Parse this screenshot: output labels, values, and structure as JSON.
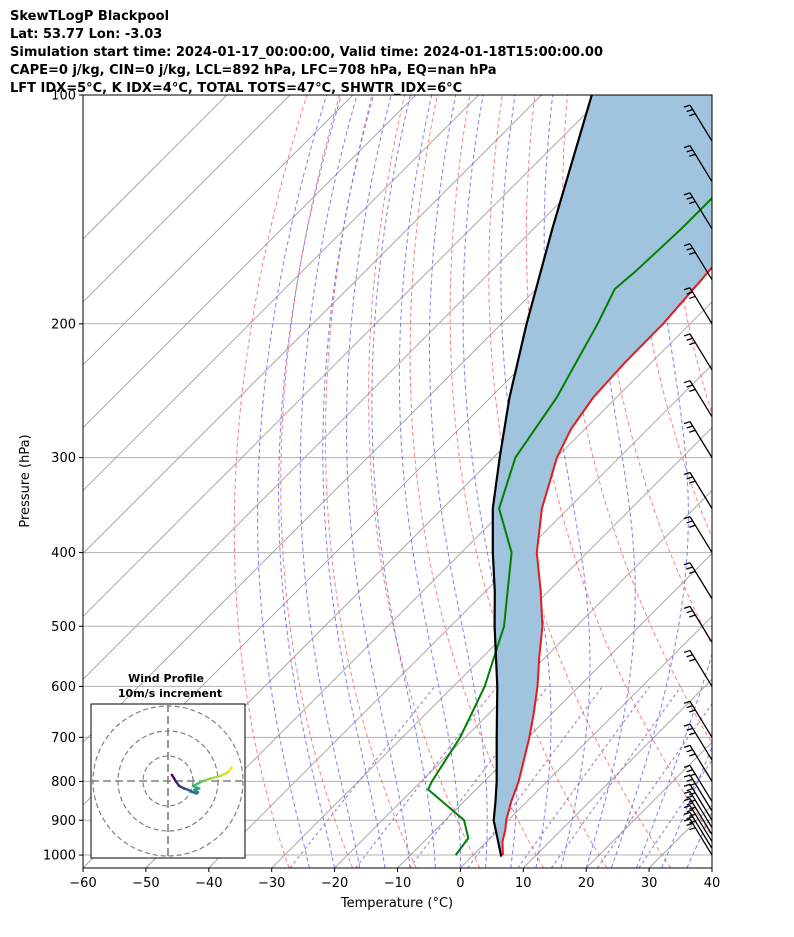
{
  "header": {
    "line1": "SkewTLogP Blackpool",
    "line2": "Lat: 53.77   Lon: -3.03",
    "line3": "Simulation start time: 2024-01-17_00:00:00, Valid time: 2024-01-18T15:00:00.00",
    "line4": "CAPE=0 j/kg, CIN=0 j/kg, LCL=892 hPa, LFC=708 hPa, EQ=nan hPa",
    "line5": "LFT IDX=5°C, K IDX=4°C, TOTAL TOTS=47°C, SHWTR_IDX=6°C"
  },
  "chart_data": {
    "type": "skew-t log-p",
    "xlabel": "Temperature (°C)",
    "ylabel": "Pressure (hPa)",
    "xlim": [
      -60,
      40
    ],
    "ylim": [
      1040,
      100
    ],
    "x_ticks": [
      "−60",
      "−50",
      "−40",
      "−30",
      "−20",
      "−10",
      "0",
      "10",
      "20",
      "30",
      "40"
    ],
    "x_tick_values": [
      -60,
      -50,
      -40,
      -30,
      -20,
      -10,
      0,
      10,
      20,
      30,
      40
    ],
    "y_ticks": [
      "100",
      "200",
      "300",
      "400",
      "500",
      "600",
      "700",
      "800",
      "900",
      "1000"
    ],
    "y_tick_values": [
      100,
      200,
      300,
      400,
      500,
      600,
      700,
      800,
      900,
      1000
    ],
    "y_scale": "log",
    "grid": true,
    "colors": {
      "temperature": "#e41a1c",
      "dewpoint": "#008000",
      "parcel": "#000000",
      "shading": "#a1c4de",
      "dry_adiabats": "#ff6666",
      "moist_adiabats": "#6666ff",
      "mixing_ratio": "#9966cc"
    },
    "temperature": [
      {
        "p": 1000,
        "t": 4.7
      },
      {
        "p": 960,
        "t": 2.5
      },
      {
        "p": 925,
        "t": 1.0
      },
      {
        "p": 900,
        "t": -0.3
      },
      {
        "p": 850,
        "t": -2.5
      },
      {
        "p": 800,
        "t": -4.5
      },
      {
        "p": 700,
        "t": -9.8
      },
      {
        "p": 650,
        "t": -13.0
      },
      {
        "p": 600,
        "t": -16.6
      },
      {
        "p": 550,
        "t": -20.9
      },
      {
        "p": 500,
        "t": -25.4
      },
      {
        "p": 450,
        "t": -31.2
      },
      {
        "p": 400,
        "t": -38.0
      },
      {
        "p": 350,
        "t": -44.2
      },
      {
        "p": 300,
        "t": -49.9
      },
      {
        "p": 275,
        "t": -52.2
      },
      {
        "p": 250,
        "t": -53.7
      },
      {
        "p": 225,
        "t": -54.2
      },
      {
        "p": 200,
        "t": -54.3
      },
      {
        "p": 175,
        "t": -55.2
      },
      {
        "p": 150,
        "t": -56.4
      },
      {
        "p": 125,
        "t": -57.7
      },
      {
        "p": 100,
        "t": -58.0
      }
    ],
    "dewpoint": [
      {
        "p": 1000,
        "t": -2.8
      },
      {
        "p": 950,
        "t": -3.5
      },
      {
        "p": 900,
        "t": -7.0
      },
      {
        "p": 850,
        "t": -13.5
      },
      {
        "p": 820,
        "t": -17.6
      },
      {
        "p": 800,
        "t": -18.3
      },
      {
        "p": 700,
        "t": -20.8
      },
      {
        "p": 600,
        "t": -25.0
      },
      {
        "p": 500,
        "t": -31.5
      },
      {
        "p": 400,
        "t": -42.0
      },
      {
        "p": 350,
        "t": -51.0
      },
      {
        "p": 300,
        "t": -56.5
      },
      {
        "p": 250,
        "t": -59.5
      },
      {
        "p": 200,
        "t": -64.7
      },
      {
        "p": 180,
        "t": -67.5
      },
      {
        "p": 170,
        "t": -67.0
      },
      {
        "p": 150,
        "t": -66.5
      },
      {
        "p": 125,
        "t": -66.5
      },
      {
        "p": 100,
        "t": -67.0
      }
    ],
    "parcel": [
      {
        "p": 1005,
        "t": 4.7
      },
      {
        "p": 900,
        "t": -2.3
      },
      {
        "p": 850,
        "t": -5.0
      },
      {
        "p": 800,
        "t": -8.0
      },
      {
        "p": 700,
        "t": -15.0
      },
      {
        "p": 600,
        "t": -23.0
      },
      {
        "p": 500,
        "t": -33.0
      },
      {
        "p": 450,
        "t": -38.5
      },
      {
        "p": 400,
        "t": -45.0
      },
      {
        "p": 350,
        "t": -52.0
      },
      {
        "p": 300,
        "t": -59.0
      },
      {
        "p": 250,
        "t": -67.0
      },
      {
        "p": 200,
        "t": -76.0
      },
      {
        "p": 150,
        "t": -87.0
      },
      {
        "p": 100,
        "t": -102.0
      }
    ],
    "wind_barbs": [
      {
        "p": 1000,
        "speed_kt": 30
      },
      {
        "p": 980,
        "speed_kt": 30
      },
      {
        "p": 960,
        "speed_kt": 30
      },
      {
        "p": 940,
        "speed_kt": 30
      },
      {
        "p": 920,
        "speed_kt": 30
      },
      {
        "p": 900,
        "speed_kt": 30
      },
      {
        "p": 875,
        "speed_kt": 30
      },
      {
        "p": 850,
        "speed_kt": 30
      },
      {
        "p": 800,
        "speed_kt": 30
      },
      {
        "p": 750,
        "speed_kt": 30
      },
      {
        "p": 700,
        "speed_kt": 30
      },
      {
        "p": 600,
        "speed_kt": 30
      },
      {
        "p": 525,
        "speed_kt": 30
      },
      {
        "p": 460,
        "speed_kt": 30
      },
      {
        "p": 400,
        "speed_kt": 30
      },
      {
        "p": 350,
        "speed_kt": 30
      },
      {
        "p": 300,
        "speed_kt": 30
      },
      {
        "p": 265,
        "speed_kt": 30
      },
      {
        "p": 230,
        "speed_kt": 30
      },
      {
        "p": 200,
        "speed_kt": 30
      },
      {
        "p": 175,
        "speed_kt": 30
      },
      {
        "p": 150,
        "speed_kt": 30
      },
      {
        "p": 130,
        "speed_kt": 30
      },
      {
        "p": 115,
        "speed_kt": 30
      }
    ],
    "hodograph": {
      "title": "Wind Profile",
      "subtitle": "10m/s increment",
      "rings": 3,
      "points": [
        {
          "u": 25.5,
          "v": 5.5
        },
        {
          "u": 24,
          "v": 3.5
        },
        {
          "u": 21,
          "v": 2
        },
        {
          "u": 17,
          "v": 1
        },
        {
          "u": 14,
          "v": 0
        },
        {
          "u": 12,
          "v": -1
        },
        {
          "u": 10,
          "v": -2
        },
        {
          "u": 12.5,
          "v": -3
        },
        {
          "u": 10.5,
          "v": -3.5
        },
        {
          "u": 12,
          "v": -4.5
        },
        {
          "u": 11.5,
          "v": -5
        },
        {
          "u": 10,
          "v": -4.5
        },
        {
          "u": 8,
          "v": -3.5
        },
        {
          "u": 6.5,
          "v": -3
        },
        {
          "u": 4.5,
          "v": -2
        },
        {
          "u": 3,
          "v": 0
        },
        {
          "u": 2.5,
          "v": 1
        },
        {
          "u": 1.5,
          "v": 2.5
        }
      ]
    }
  }
}
